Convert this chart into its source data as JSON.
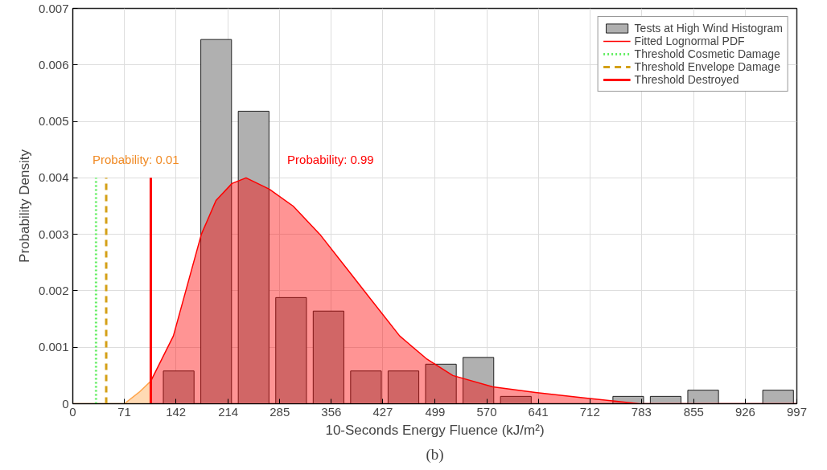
{
  "chart_data": {
    "type": "histogram",
    "xlabel": "10-Seconds Energy Fluence (kJ/m²)",
    "ylabel": "Probability Density",
    "bins": [
      120,
      171.6,
      223.2,
      274.8,
      326.4,
      377.9,
      429.5,
      481.1,
      532.7,
      584.3,
      635.9,
      687.5,
      739.1,
      790.6,
      842.2,
      893.8,
      945.4,
      997
    ],
    "series": [
      {
        "name": "Tests at High Wind Histogram",
        "color": "#b0b0b0",
        "values": [
          0.00058,
          0.00645,
          0.00518,
          0.00188,
          0.00164,
          0.00058,
          0.00058,
          0.0007,
          0.00082,
          0.00013,
          0,
          0,
          0.00013,
          0.00013,
          0.00024,
          0,
          0.00024
        ]
      },
      {
        "type": "area",
        "color": "#ffa64d",
        "x": [
          0,
          47,
          71,
          91,
          107.4
        ],
        "values": [
          0,
          0,
          0,
          0.0002,
          0.0004
        ]
      },
      {
        "type": "area",
        "name": "Fitted Lognormal PDF",
        "color": "#ff0000",
        "x": [
          107.4,
          138.5,
          177,
          197.2,
          219.2,
          238.6,
          270.5,
          303.4,
          340.2,
          376.8,
          413.4,
          450.1,
          486.7,
          523.3,
          578.3,
          637,
          706.6,
          779.9,
          853.1,
          997
        ],
        "values": [
          0.0004,
          0.0012,
          0.003,
          0.0036,
          0.0039,
          0.004,
          0.0038,
          0.0035,
          0.003,
          0.0024,
          0.0018,
          0.0012,
          0.0008,
          0.0005,
          0.0003,
          0.0002,
          0.0001,
          0,
          0,
          0
        ]
      },
      {
        "type": "line",
        "name": "Threshold Cosmetic Damage",
        "color": "#66ee66",
        "line_style": "dotted",
        "x": [
          32,
          32
        ],
        "values": [
          0,
          0.004
        ]
      },
      {
        "type": "line",
        "name": "Threshold Envelope Damage",
        "color": "#d4a017",
        "line_style": "dashed",
        "x": [
          46,
          46
        ],
        "values": [
          0,
          0.004
        ]
      },
      {
        "type": "line",
        "name": "Threshold Destroyed",
        "color": "#ff0000",
        "line_style": "solid",
        "x": [
          107.4,
          107.4
        ],
        "values": [
          0,
          0.004
        ]
      }
    ],
    "annotations": [
      "Probability: 0.01",
      "Probability: 0.99",
      "(b)"
    ],
    "xlim": [
      0,
      997
    ],
    "xticks": [
      0,
      71,
      142,
      214,
      285,
      356,
      427,
      499,
      570,
      641,
      712,
      783,
      855,
      926,
      997
    ],
    "ylim": [
      0,
      0.007
    ],
    "yticks": [
      0,
      0.001,
      0.002,
      0.003,
      0.004,
      0.005,
      0.006,
      0.007
    ],
    "grid": true,
    "legend": "top right"
  }
}
